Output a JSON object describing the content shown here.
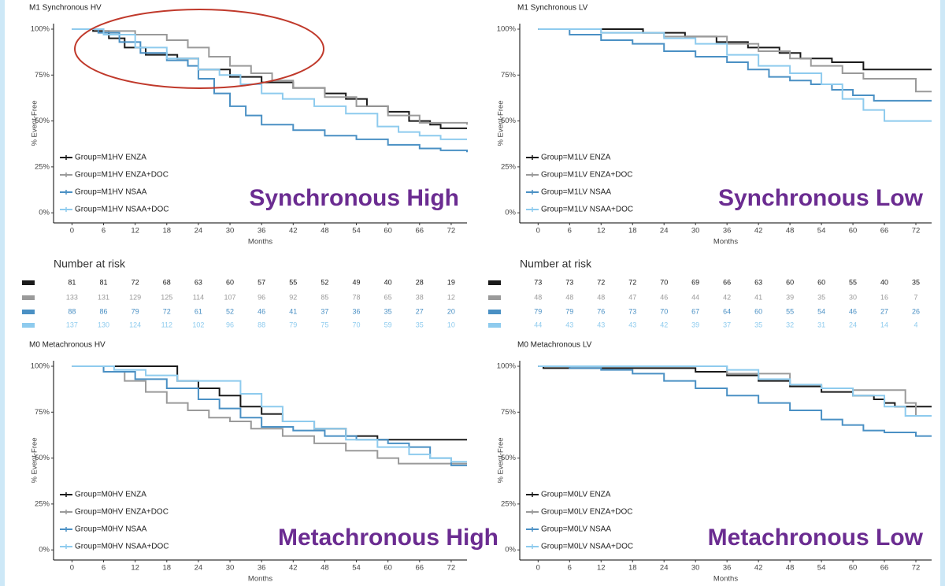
{
  "chart_data": [
    {
      "type": "line",
      "step": true,
      "title": "M1 Synchronous HV",
      "x_label": "Months",
      "y_label": "% Event-Free",
      "annotation": "Synchronous High",
      "legend": "lower left",
      "xlim": [
        -3.5,
        75
      ],
      "xticks": [
        0,
        6,
        12,
        18,
        24,
        30,
        36,
        42,
        48,
        54,
        60,
        66,
        72
      ],
      "ylim": [
        -5.5,
        103
      ],
      "yticks": [
        {
          "value": 0,
          "label": "0%"
        },
        {
          "value": 25,
          "label": "25%"
        },
        {
          "value": 50,
          "label": "50%"
        },
        {
          "value": 75,
          "label": "75%"
        },
        {
          "value": 100,
          "label": "100%"
        }
      ],
      "series": [
        {
          "name": "Group=M1HV ENZA",
          "color": "#1a1a1a",
          "x": [
            0,
            4,
            7,
            10,
            14,
            20,
            24,
            30,
            36,
            42,
            48,
            52,
            56,
            60,
            64,
            68,
            70,
            75
          ],
          "values": [
            100,
            99,
            95,
            90,
            86,
            84,
            78,
            74,
            71,
            68,
            65,
            62,
            58,
            55,
            50,
            48,
            46,
            46
          ]
        },
        {
          "name": "Group=M1HV ENZA+DOC",
          "color": "#9a9a9a",
          "x": [
            0,
            6,
            12,
            18,
            22,
            26,
            30,
            34,
            38,
            42,
            48,
            54,
            60,
            66,
            75
          ],
          "values": [
            100,
            99,
            97,
            94,
            90,
            85,
            80,
            76,
            72,
            68,
            63,
            58,
            53,
            49,
            48
          ]
        },
        {
          "name": "Group=M1HV NSAA",
          "color": "#4a90c4",
          "x": [
            0,
            5,
            9,
            13,
            18,
            22,
            24,
            27,
            30,
            33,
            36,
            42,
            48,
            54,
            60,
            66,
            70,
            75
          ],
          "values": [
            100,
            98,
            93,
            87,
            83,
            80,
            73,
            65,
            58,
            53,
            48,
            45,
            42,
            40,
            37,
            35,
            34,
            33
          ]
        },
        {
          "name": "Group=M1HV NSAA+DOC",
          "color": "#8ecbee",
          "x": [
            0,
            6,
            12,
            18,
            24,
            28,
            32,
            36,
            40,
            46,
            52,
            58,
            62,
            66,
            70,
            75
          ],
          "values": [
            100,
            97,
            90,
            84,
            78,
            75,
            70,
            65,
            62,
            58,
            54,
            47,
            44,
            42,
            40,
            40
          ]
        }
      ]
    },
    {
      "type": "line",
      "step": true,
      "title": "M1 Synchronous LV",
      "x_label": "Months",
      "y_label": "% Event-Free",
      "annotation": "Synchronous Low",
      "legend": "lower left",
      "xlim": [
        -3.5,
        75
      ],
      "xticks": [
        0,
        6,
        12,
        18,
        24,
        30,
        36,
        42,
        48,
        54,
        60,
        66,
        72
      ],
      "ylim": [
        -5.5,
        103
      ],
      "yticks": [
        {
          "value": 0,
          "label": "0%"
        },
        {
          "value": 25,
          "label": "25%"
        },
        {
          "value": 50,
          "label": "50%"
        },
        {
          "value": 75,
          "label": "75%"
        },
        {
          "value": 100,
          "label": "100%"
        }
      ],
      "series": [
        {
          "name": "Group=M1LV ENZA",
          "color": "#1a1a1a",
          "x": [
            0,
            20,
            28,
            34,
            40,
            46,
            50,
            56,
            62,
            75
          ],
          "values": [
            100,
            98,
            96,
            93,
            90,
            87,
            84,
            82,
            78,
            78
          ]
        },
        {
          "name": "Group=M1LV ENZA+DOC",
          "color": "#9a9a9a",
          "x": [
            0,
            12,
            24,
            36,
            42,
            48,
            52,
            58,
            62,
            66,
            72,
            75
          ],
          "values": [
            100,
            98,
            96,
            92,
            88,
            84,
            80,
            76,
            73,
            73,
            66,
            66
          ]
        },
        {
          "name": "Group=M1LV NSAA",
          "color": "#4a90c4",
          "x": [
            0,
            6,
            12,
            18,
            24,
            30,
            36,
            40,
            44,
            48,
            52,
            56,
            60,
            64,
            75
          ],
          "values": [
            100,
            97,
            94,
            92,
            88,
            85,
            82,
            78,
            74,
            72,
            70,
            67,
            64,
            61,
            61
          ]
        },
        {
          "name": "Group=M1LV NSAA+DOC",
          "color": "#8ecbee",
          "x": [
            0,
            12,
            24,
            30,
            36,
            42,
            48,
            54,
            58,
            62,
            66,
            75
          ],
          "values": [
            100,
            98,
            95,
            92,
            86,
            80,
            76,
            70,
            62,
            56,
            50,
            50
          ]
        }
      ]
    },
    {
      "type": "line",
      "step": true,
      "title": "M0 Metachronous HV",
      "x_label": "Months",
      "y_label": "% Event-Free",
      "annotation": "Metachronous High",
      "legend": "lower left",
      "xlim": [
        -3.5,
        75
      ],
      "xticks": [
        0,
        6,
        12,
        18,
        24,
        30,
        36,
        42,
        48,
        54,
        60,
        66,
        72
      ],
      "ylim": [
        -5.5,
        103
      ],
      "yticks": [
        {
          "value": 0,
          "label": "0%"
        },
        {
          "value": 25,
          "label": "25%"
        },
        {
          "value": 50,
          "label": "50%"
        },
        {
          "value": 75,
          "label": "75%"
        },
        {
          "value": 100,
          "label": "100%"
        }
      ],
      "series": [
        {
          "name": "Group=M0HV ENZA",
          "color": "#1a1a1a",
          "x": [
            0,
            18,
            20,
            24,
            28,
            32,
            36,
            40,
            46,
            52,
            58,
            75
          ],
          "values": [
            100,
            100,
            92,
            88,
            84,
            78,
            74,
            70,
            66,
            62,
            60,
            60
          ]
        },
        {
          "name": "Group=M0HV ENZA+DOC",
          "color": "#9a9a9a",
          "x": [
            0,
            6,
            10,
            14,
            18,
            22,
            26,
            30,
            34,
            40,
            46,
            52,
            58,
            62,
            75
          ],
          "values": [
            100,
            97,
            92,
            86,
            80,
            76,
            72,
            70,
            66,
            62,
            58,
            54,
            50,
            47,
            47
          ]
        },
        {
          "name": "Group=M0HV NSAA",
          "color": "#4a90c4",
          "x": [
            0,
            6,
            12,
            18,
            24,
            28,
            32,
            36,
            42,
            48,
            54,
            60,
            64,
            68,
            72,
            75
          ],
          "values": [
            100,
            97,
            93,
            88,
            82,
            77,
            72,
            67,
            65,
            62,
            60,
            58,
            56,
            50,
            46,
            46
          ]
        },
        {
          "name": "Group=M0HV NSAA+DOC",
          "color": "#8ecbee",
          "x": [
            0,
            8,
            14,
            20,
            26,
            32,
            36,
            40,
            46,
            52,
            58,
            64,
            68,
            72,
            75
          ],
          "values": [
            100,
            98,
            95,
            92,
            92,
            85,
            78,
            70,
            66,
            60,
            56,
            52,
            50,
            48,
            48
          ]
        }
      ]
    },
    {
      "type": "line",
      "step": true,
      "title": "M0 Metachronous LV",
      "x_label": "Months",
      "y_label": "% Event-Free",
      "annotation": "Metachronous Low",
      "legend": "lower left",
      "xlim": [
        -3.5,
        75
      ],
      "xticks": [
        0,
        6,
        12,
        18,
        24,
        30,
        36,
        42,
        48,
        54,
        60,
        66,
        72
      ],
      "ylim": [
        -5.5,
        103
      ],
      "yticks": [
        {
          "value": 0,
          "label": "0%"
        },
        {
          "value": 25,
          "label": "25%"
        },
        {
          "value": 50,
          "label": "50%"
        },
        {
          "value": 75,
          "label": "75%"
        },
        {
          "value": 100,
          "label": "100%"
        }
      ],
      "series": [
        {
          "name": "Group=M0LV ENZA",
          "color": "#1a1a1a",
          "x": [
            0,
            1,
            18,
            30,
            36,
            42,
            48,
            54,
            60,
            64,
            66,
            68,
            75
          ],
          "values": [
            100,
            99,
            99,
            97,
            95,
            92,
            89,
            86,
            84,
            82,
            80,
            78,
            78
          ]
        },
        {
          "name": "Group=M0LV ENZA+DOC",
          "color": "#9a9a9a",
          "x": [
            0,
            18,
            36,
            48,
            54,
            60,
            66,
            70,
            72,
            75
          ],
          "values": [
            100,
            100,
            96,
            90,
            88,
            87,
            87,
            80,
            73,
            73
          ]
        },
        {
          "name": "Group=M0LV NSAA",
          "color": "#4a90c4",
          "x": [
            0,
            6,
            12,
            18,
            24,
            30,
            36,
            42,
            48,
            54,
            58,
            62,
            66,
            72,
            75
          ],
          "values": [
            100,
            99,
            98,
            96,
            92,
            88,
            84,
            80,
            76,
            71,
            68,
            65,
            64,
            62,
            62
          ]
        },
        {
          "name": "Group=M0LV NSAA+DOC",
          "color": "#8ecbee",
          "x": [
            0,
            12,
            24,
            36,
            42,
            48,
            54,
            60,
            66,
            70,
            75
          ],
          "values": [
            100,
            100,
            100,
            98,
            93,
            90,
            88,
            84,
            78,
            73,
            73
          ]
        }
      ]
    }
  ],
  "risk_tables": [
    {
      "title": "Number at risk",
      "rows": [
        {
          "color": "#1a1a1a",
          "values": [
            81,
            81,
            72,
            68,
            63,
            60,
            57,
            55,
            52,
            49,
            40,
            28,
            19
          ]
        },
        {
          "color": "#9a9a9a",
          "values": [
            133,
            131,
            129,
            125,
            114,
            107,
            96,
            92,
            85,
            78,
            65,
            38,
            12
          ]
        },
        {
          "color": "#4a90c4",
          "values": [
            88,
            86,
            79,
            72,
            61,
            52,
            46,
            41,
            37,
            36,
            35,
            27,
            20
          ]
        },
        {
          "color": "#8ecbee",
          "values": [
            137,
            130,
            124,
            112,
            102,
            96,
            88,
            79,
            75,
            70,
            59,
            35,
            10
          ]
        }
      ]
    },
    {
      "title": "Number at risk",
      "rows": [
        {
          "color": "#1a1a1a",
          "values": [
            73,
            73,
            72,
            72,
            70,
            69,
            66,
            63,
            60,
            60,
            55,
            40,
            35
          ]
        },
        {
          "color": "#9a9a9a",
          "values": [
            48,
            48,
            48,
            47,
            46,
            44,
            42,
            41,
            39,
            35,
            30,
            16,
            7
          ]
        },
        {
          "color": "#4a90c4",
          "values": [
            79,
            79,
            76,
            73,
            70,
            67,
            64,
            60,
            55,
            54,
            46,
            27,
            26
          ]
        },
        {
          "color": "#8ecbee",
          "values": [
            44,
            43,
            43,
            43,
            42,
            39,
            37,
            35,
            32,
            31,
            24,
            14,
            4
          ]
        }
      ]
    }
  ]
}
